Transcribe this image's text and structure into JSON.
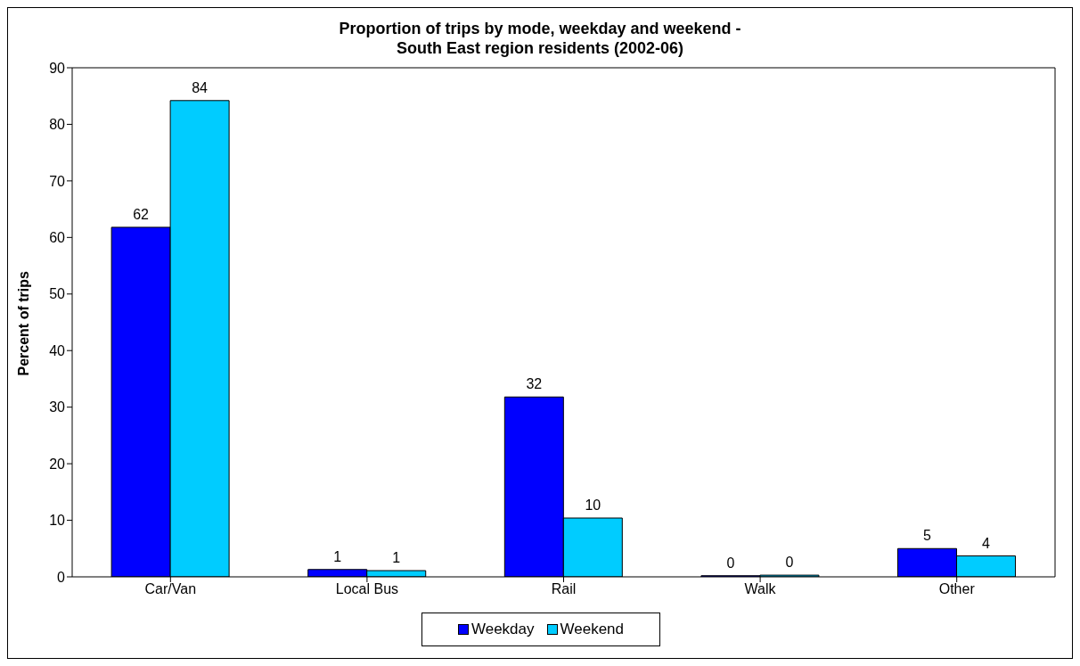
{
  "chart_data": {
    "type": "bar",
    "title": "Proportion of trips by mode, weekday and weekend -\nSouth East region residents (2002-06)",
    "ylabel": "Percent of trips",
    "categories": [
      "Car/Van",
      "Local Bus",
      "Rail",
      "Walk",
      "Other"
    ],
    "series": [
      {
        "name": "Weekday",
        "color": "#0000ff",
        "values": [
          61.8,
          1.3,
          31.8,
          0.2,
          5.0
        ],
        "value_labels": [
          "62",
          "1",
          "32",
          "0",
          "5"
        ]
      },
      {
        "name": "Weekend",
        "color": "#00ccff",
        "values": [
          84.2,
          1.1,
          10.4,
          0.3,
          3.7
        ],
        "value_labels": [
          "84",
          "1",
          "10",
          "0",
          "4"
        ]
      }
    ],
    "ylim": [
      0,
      90
    ],
    "yticks": [
      0,
      10,
      20,
      30,
      40,
      50,
      60,
      70,
      80,
      90
    ],
    "grid": false,
    "legend": "bottom"
  }
}
